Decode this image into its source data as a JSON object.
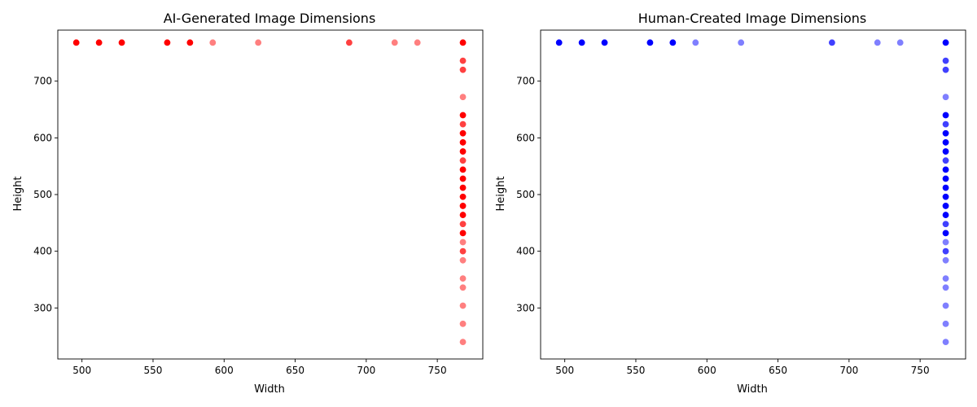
{
  "chart_data": [
    {
      "type": "scatter",
      "title": "AI-Generated Image Dimensions",
      "xlabel": "Width",
      "ylabel": "Height",
      "xlim": [
        483,
        782
      ],
      "ylim": [
        210,
        790
      ],
      "xticks": [
        500,
        550,
        600,
        650,
        700,
        750
      ],
      "yticks": [
        300,
        400,
        500,
        600,
        700
      ],
      "grid": false,
      "color": "#ff0000",
      "series": [
        {
          "points": [
            {
              "x": 496,
              "y": 768
            },
            {
              "x": 512,
              "y": 768
            },
            {
              "x": 528,
              "y": 768
            },
            {
              "x": 560,
              "y": 768
            },
            {
              "x": 576,
              "y": 768
            },
            {
              "x": 592,
              "y": 768
            },
            {
              "x": 624,
              "y": 768
            },
            {
              "x": 688,
              "y": 768
            },
            {
              "x": 720,
              "y": 768
            },
            {
              "x": 736,
              "y": 768
            },
            {
              "x": 768,
              "y": 768
            },
            {
              "x": 768,
              "y": 736
            },
            {
              "x": 768,
              "y": 720
            },
            {
              "x": 768,
              "y": 672
            },
            {
              "x": 768,
              "y": 640
            },
            {
              "x": 768,
              "y": 624
            },
            {
              "x": 768,
              "y": 608
            },
            {
              "x": 768,
              "y": 592
            },
            {
              "x": 768,
              "y": 576
            },
            {
              "x": 768,
              "y": 560
            },
            {
              "x": 768,
              "y": 544
            },
            {
              "x": 768,
              "y": 528
            },
            {
              "x": 768,
              "y": 512
            },
            {
              "x": 768,
              "y": 496
            },
            {
              "x": 768,
              "y": 480
            },
            {
              "x": 768,
              "y": 464
            },
            {
              "x": 768,
              "y": 448
            },
            {
              "x": 768,
              "y": 432
            },
            {
              "x": 768,
              "y": 416
            },
            {
              "x": 768,
              "y": 400
            },
            {
              "x": 768,
              "y": 384
            },
            {
              "x": 768,
              "y": 352
            },
            {
              "x": 768,
              "y": 336
            },
            {
              "x": 768,
              "y": 304
            },
            {
              "x": 768,
              "y": 272
            },
            {
              "x": 768,
              "y": 240
            }
          ],
          "opacity": [
            1,
            1,
            1,
            1,
            1,
            0.5,
            0.5,
            0.75,
            0.5,
            0.5,
            1,
            0.75,
            0.75,
            0.5,
            1,
            0.75,
            1,
            1,
            1,
            0.75,
            1,
            1,
            1,
            1,
            1,
            1,
            0.75,
            1,
            0.5,
            0.75,
            0.5,
            0.5,
            0.5,
            0.5,
            0.5,
            0.5
          ]
        }
      ]
    },
    {
      "type": "scatter",
      "title": "Human-Created Image Dimensions",
      "xlabel": "Width",
      "ylabel": "Height",
      "xlim": [
        483,
        782
      ],
      "ylim": [
        210,
        790
      ],
      "xticks": [
        500,
        550,
        600,
        650,
        700,
        750
      ],
      "yticks": [
        300,
        400,
        500,
        600,
        700
      ],
      "grid": false,
      "color": "#0000ff",
      "series": [
        {
          "points": [
            {
              "x": 496,
              "y": 768
            },
            {
              "x": 512,
              "y": 768
            },
            {
              "x": 528,
              "y": 768
            },
            {
              "x": 560,
              "y": 768
            },
            {
              "x": 576,
              "y": 768
            },
            {
              "x": 592,
              "y": 768
            },
            {
              "x": 624,
              "y": 768
            },
            {
              "x": 688,
              "y": 768
            },
            {
              "x": 720,
              "y": 768
            },
            {
              "x": 736,
              "y": 768
            },
            {
              "x": 768,
              "y": 768
            },
            {
              "x": 768,
              "y": 736
            },
            {
              "x": 768,
              "y": 720
            },
            {
              "x": 768,
              "y": 672
            },
            {
              "x": 768,
              "y": 640
            },
            {
              "x": 768,
              "y": 624
            },
            {
              "x": 768,
              "y": 608
            },
            {
              "x": 768,
              "y": 592
            },
            {
              "x": 768,
              "y": 576
            },
            {
              "x": 768,
              "y": 560
            },
            {
              "x": 768,
              "y": 544
            },
            {
              "x": 768,
              "y": 528
            },
            {
              "x": 768,
              "y": 512
            },
            {
              "x": 768,
              "y": 496
            },
            {
              "x": 768,
              "y": 480
            },
            {
              "x": 768,
              "y": 464
            },
            {
              "x": 768,
              "y": 448
            },
            {
              "x": 768,
              "y": 432
            },
            {
              "x": 768,
              "y": 416
            },
            {
              "x": 768,
              "y": 400
            },
            {
              "x": 768,
              "y": 384
            },
            {
              "x": 768,
              "y": 352
            },
            {
              "x": 768,
              "y": 336
            },
            {
              "x": 768,
              "y": 304
            },
            {
              "x": 768,
              "y": 272
            },
            {
              "x": 768,
              "y": 240
            }
          ],
          "opacity": [
            1,
            1,
            1,
            1,
            1,
            0.5,
            0.5,
            0.75,
            0.5,
            0.5,
            1,
            0.75,
            0.75,
            0.5,
            1,
            0.75,
            1,
            1,
            1,
            0.75,
            1,
            1,
            1,
            1,
            1,
            1,
            0.75,
            1,
            0.5,
            0.75,
            0.5,
            0.5,
            0.5,
            0.5,
            0.5,
            0.5
          ]
        }
      ]
    }
  ]
}
